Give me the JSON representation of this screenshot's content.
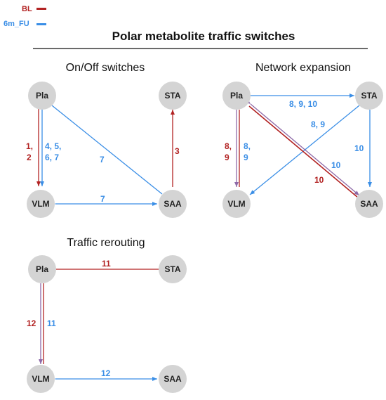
{
  "title": "Polar metabolite traffic switches",
  "legend": [
    {
      "label": "BL",
      "color": "#b22222"
    },
    {
      "label": "6m_FU",
      "color": "#3a8ee6"
    }
  ],
  "colors": {
    "node": "#d4d4d4",
    "red": "#b22222",
    "blue": "#3a8ee6",
    "purple": "#8e6aa8"
  },
  "panels": {
    "onoff": {
      "title": "On/Off switches",
      "labels": [
        "1,",
        "2",
        "4, 5,",
        "6, 7",
        "7",
        "3",
        "7"
      ]
    },
    "network": {
      "title": "Network expansion",
      "labels": [
        "8, 9, 10",
        "8, 9",
        "8,",
        "9",
        "8,",
        "9",
        "10",
        "10",
        "10"
      ]
    },
    "reroute": {
      "title": "Traffic rerouting",
      "labels": [
        "11",
        "12",
        "11",
        "12"
      ]
    }
  },
  "nodes": [
    "Pla",
    "STA",
    "VLM",
    "SAA"
  ]
}
